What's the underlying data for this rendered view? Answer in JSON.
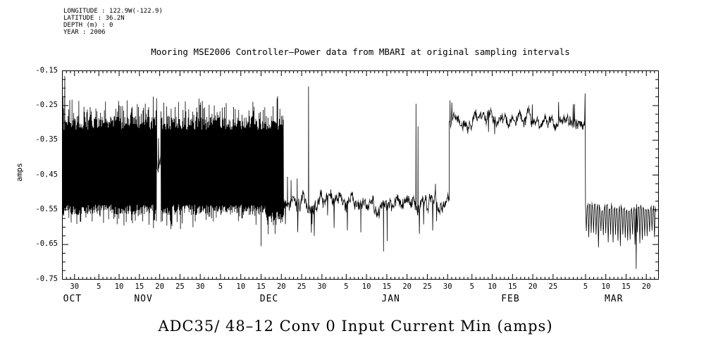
{
  "meta": {
    "longitude": "LONGITUDE : 122.9W(-122.9)",
    "latitude": "LATITUDE : 36.2N",
    "depth": "DEPTH (m) : 0",
    "year": "YEAR : 2006"
  },
  "chart_data": {
    "type": "line",
    "title": "Mooring MSE2006 Controller–Power data from MBARI at original sampling intervals",
    "caption": "ADC35/ 48–12 Conv 0 Input Current Min (amps)",
    "ylabel": "amps",
    "xlabel": "",
    "line_color": "#000000",
    "background": "#ffffff",
    "ylim": [
      -0.75,
      -0.15
    ],
    "yticks": [
      {
        "value": -0.15,
        "label": "-0.15"
      },
      {
        "value": -0.25,
        "label": "-0.25"
      },
      {
        "value": -0.35,
        "label": "-0.35"
      },
      {
        "value": -0.45,
        "label": "-0.45"
      },
      {
        "value": -0.55,
        "label": "-0.55"
      },
      {
        "value": -0.65,
        "label": "-0.65"
      },
      {
        "value": -0.75,
        "label": "-0.75"
      }
    ],
    "y_minor_per_major": 3,
    "x_total_days": 147,
    "x_minor_step_days": 1,
    "x_major_ticks": [
      {
        "day": 3,
        "label": "30"
      },
      {
        "day": 9,
        "label": "5"
      },
      {
        "day": 14,
        "label": "10"
      },
      {
        "day": 19,
        "label": "15"
      },
      {
        "day": 24,
        "label": "20"
      },
      {
        "day": 29,
        "label": "25"
      },
      {
        "day": 34,
        "label": "30"
      },
      {
        "day": 39,
        "label": "5"
      },
      {
        "day": 44,
        "label": "10"
      },
      {
        "day": 49,
        "label": "15"
      },
      {
        "day": 54,
        "label": "20"
      },
      {
        "day": 59,
        "label": "25"
      },
      {
        "day": 64,
        "label": "30"
      },
      {
        "day": 70,
        "label": "5"
      },
      {
        "day": 75,
        "label": "10"
      },
      {
        "day": 80,
        "label": "15"
      },
      {
        "day": 85,
        "label": "20"
      },
      {
        "day": 90,
        "label": "25"
      },
      {
        "day": 95,
        "label": "30"
      },
      {
        "day": 101,
        "label": "5"
      },
      {
        "day": 106,
        "label": "10"
      },
      {
        "day": 111,
        "label": "15"
      },
      {
        "day": 116,
        "label": "20"
      },
      {
        "day": 121,
        "label": "25"
      },
      {
        "day": 129,
        "label": "5"
      },
      {
        "day": 134,
        "label": "10"
      },
      {
        "day": 139,
        "label": "15"
      },
      {
        "day": 144,
        "label": "20"
      }
    ],
    "months": [
      {
        "label": "OCT",
        "day": 2.5
      },
      {
        "label": "NOV",
        "day": 20
      },
      {
        "label": "DEC",
        "day": 51
      },
      {
        "label": "JAN",
        "day": 81
      },
      {
        "label": "FEB",
        "day": 110.5
      },
      {
        "label": "MAR",
        "day": 136
      }
    ],
    "series_spec": {
      "description": "Day 0 = Oct 27. Dense tidal oscillation -0.56..-0.27 amps Oct 27-Dec 20 (brief calm near Nov 19-20); noisy plateau near -0.53 Dec 20-Jan 30 with spikes; high plateau near -0.29 Jan 31-Mar 5; spiky low band -0.64..-0.53 Mar 5-Mar 22.",
      "seed": 20061027,
      "segments": [
        {
          "mode": "dense",
          "from": 0,
          "to": 23.3,
          "top": -0.3,
          "bottom": -0.55,
          "top_jitter": 0.02,
          "bottom_jitter": 0.015,
          "dt": 0.07
        },
        {
          "mode": "noisy",
          "from": 23.3,
          "to": 24.3,
          "base": -0.41,
          "sigma": 0.03,
          "dt": 0.08
        },
        {
          "mode": "dense",
          "from": 24.3,
          "to": 50,
          "top": -0.3,
          "bottom": -0.55,
          "top_jitter": 0.02,
          "bottom_jitter": 0.015,
          "dt": 0.07
        },
        {
          "mode": "dense",
          "from": 50,
          "to": 54.6,
          "top": -0.3,
          "bottom": -0.575,
          "top_jitter": 0.02,
          "bottom_jitter": 0.02,
          "dt": 0.07
        },
        {
          "mode": "noisy",
          "from": 54.6,
          "to": 95.4,
          "base": -0.535,
          "sigma": 0.022,
          "dt": 0.08
        },
        {
          "mode": "noisy",
          "from": 95.4,
          "to": 128.8,
          "base": -0.29,
          "sigma": 0.018,
          "dt": 0.08
        },
        {
          "mode": "spiky",
          "from": 129.0,
          "to": 146.4,
          "top": -0.545,
          "bottom": -0.635,
          "dt": 0.2
        }
      ],
      "spikes": [
        {
          "day": 0.6,
          "value": -0.165
        },
        {
          "day": 49.0,
          "value": -0.655
        },
        {
          "day": 55.5,
          "value": -0.455
        },
        {
          "day": 56.4,
          "value": -0.465
        },
        {
          "day": 57.9,
          "value": -0.46
        },
        {
          "day": 60.7,
          "value": -0.195
        },
        {
          "day": 73.6,
          "value": -0.615
        },
        {
          "day": 79.2,
          "value": -0.67
        },
        {
          "day": 80.1,
          "value": -0.64
        },
        {
          "day": 87.2,
          "value": -0.245
        },
        {
          "day": 87.7,
          "value": -0.31
        },
        {
          "day": 92.0,
          "value": -0.475
        },
        {
          "day": 95.6,
          "value": -0.235
        },
        {
          "day": 128.9,
          "value": -0.215
        },
        {
          "day": 141.5,
          "value": -0.72
        }
      ]
    }
  }
}
